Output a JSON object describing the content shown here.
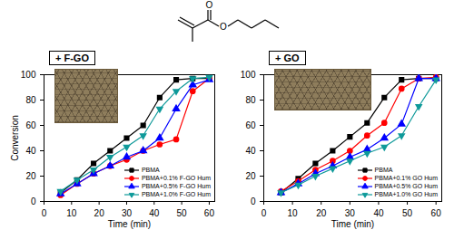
{
  "molecule": {
    "labels": [
      "O",
      "O"
    ]
  },
  "chart_data": [
    {
      "type": "line",
      "title": "+ F-GO",
      "x_label": "Time (min)",
      "y_label": "Conversion",
      "xlim": [
        0,
        62
      ],
      "ylim": [
        0,
        100
      ],
      "xticks": [
        0,
        10,
        20,
        30,
        40,
        50,
        60
      ],
      "yticks": [
        0,
        20,
        40,
        60,
        80,
        100
      ],
      "grid": false,
      "legend": "lower right",
      "x": [
        6,
        12,
        18,
        24,
        30,
        36,
        42,
        48,
        54,
        60
      ],
      "series": [
        {
          "name": "PBMA",
          "color": "#000000",
          "marker": "square",
          "values": [
            7,
            17,
            30,
            40,
            50,
            60,
            82,
            96,
            97,
            97
          ]
        },
        {
          "name": "PBMA+0.1% F-GO Hum",
          "color": "#ff0000",
          "marker": "circle",
          "values": [
            5,
            14,
            22,
            28,
            33,
            40,
            45,
            49,
            87,
            97
          ]
        },
        {
          "name": "PBMA+0.5% F-GO Hum",
          "color": "#0000ff",
          "marker": "triangle",
          "values": [
            6,
            14,
            22,
            28,
            35,
            40,
            50,
            73,
            92,
            96
          ]
        },
        {
          "name": "PBMA+1.0% F-GO Hum",
          "color": "#0f9a9a",
          "marker": "triangle-down",
          "values": [
            8,
            17,
            25,
            35,
            43,
            52,
            73,
            87,
            97,
            98
          ]
        }
      ]
    },
    {
      "type": "line",
      "title": "+ GO",
      "x_label": "Time (min)",
      "xlim": [
        0,
        62
      ],
      "ylim": [
        0,
        100
      ],
      "xticks": [
        0,
        10,
        20,
        30,
        40,
        50,
        60
      ],
      "yticks": [
        0,
        20,
        40,
        60,
        80,
        100
      ],
      "grid": false,
      "legend": "lower right",
      "x": [
        6,
        12,
        18,
        24,
        30,
        36,
        42,
        48,
        54,
        60
      ],
      "series": [
        {
          "name": "PBMA",
          "color": "#000000",
          "marker": "square",
          "values": [
            7,
            18,
            30,
            40,
            51,
            62,
            82,
            96,
            97,
            97
          ]
        },
        {
          "name": "PBMA+0.1% GO Hum",
          "color": "#ff0000",
          "marker": "circle",
          "values": [
            8,
            16,
            25,
            32,
            40,
            52,
            62,
            89,
            97,
            98
          ]
        },
        {
          "name": "PBMA+0.5% GO Hum",
          "color": "#0000ff",
          "marker": "triangle",
          "values": [
            7,
            14,
            22,
            28,
            35,
            41,
            50,
            61,
            97,
            97
          ]
        },
        {
          "name": "PBMA+1.0% GO Hum",
          "color": "#0f9a9a",
          "marker": "triangle-down",
          "values": [
            7,
            13,
            20,
            26,
            32,
            38,
            43,
            52,
            75,
            96
          ]
        }
      ]
    }
  ]
}
